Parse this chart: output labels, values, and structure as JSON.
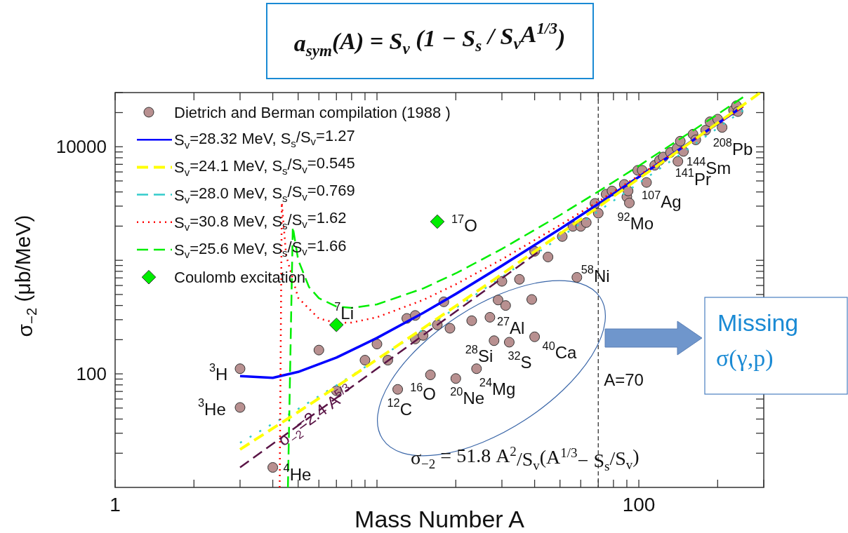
{
  "chart_data": {
    "type": "scatter",
    "title": "a$_{sym}$(A) = S$_{v}$ (1 − S$_{s}$ / S$_{v}$A$^{1/3}$)",
    "xlabel": "Mass Number A",
    "ylabel": "σ$_{−2}$ (μb/MeV)",
    "log": "xy",
    "grid": false,
    "legend": "top left",
    "xlim": [
      1,
      300
    ],
    "ylim": [
      10,
      30000
    ],
    "xticks": [
      1,
      {
        "value": 2,
        "label": null
      },
      {
        "value": 3,
        "label": null
      },
      {
        "value": 4,
        "label": null
      },
      {
        "value": 5,
        "label": null
      },
      {
        "value": 6,
        "label": null
      },
      {
        "value": 7,
        "label": null
      },
      {
        "value": 8,
        "label": null
      },
      {
        "value": 9,
        "label": null
      },
      {
        "value": 10,
        "label": null
      },
      {
        "value": 20,
        "label": null
      },
      {
        "value": 30,
        "label": null
      },
      {
        "value": 40,
        "label": null
      },
      {
        "value": 50,
        "label": null
      },
      {
        "value": 60,
        "label": null
      },
      {
        "value": 70,
        "label": null
      },
      {
        "value": 80,
        "label": null
      },
      {
        "value": 90,
        "label": null
      },
      100,
      {
        "value": 200,
        "label": null
      },
      {
        "value": 300,
        "label": null
      }
    ],
    "yticks": [
      {
        "value": 20,
        "label": null
      },
      {
        "value": 30,
        "label": null
      },
      {
        "value": 40,
        "label": null
      },
      {
        "value": 50,
        "label": null
      },
      {
        "value": 60,
        "label": null
      },
      {
        "value": 70,
        "label": null
      },
      {
        "value": 80,
        "label": null
      },
      {
        "value": 90,
        "label": null
      },
      100,
      {
        "value": 200,
        "label": null
      },
      {
        "value": 300,
        "label": null
      },
      {
        "value": 400,
        "label": null
      },
      {
        "value": 500,
        "label": null
      },
      {
        "value": 600,
        "label": null
      },
      {
        "value": 700,
        "label": null
      },
      {
        "value": 800,
        "label": null
      },
      {
        "value": 900,
        "label": null
      },
      {
        "value": 1000,
        "label": null
      },
      {
        "value": 2000,
        "label": null
      },
      {
        "value": 3000,
        "label": null
      },
      {
        "value": 4000,
        "label": null
      },
      {
        "value": 5000,
        "label": null
      },
      {
        "value": 6000,
        "label": null
      },
      {
        "value": 7000,
        "label": null
      },
      {
        "value": 8000,
        "label": null
      },
      {
        "value": 9000,
        "label": null
      },
      10000,
      {
        "value": 20000,
        "label": null
      },
      {
        "value": 30000,
        "label": null
      }
    ],
    "series": [
      {
        "name": "Dietrich and Berman compilation (1988 )",
        "marker": "circle",
        "color": "#b89090",
        "x": [
          3,
          3,
          4,
          6,
          7,
          9,
          10,
          11,
          12,
          13,
          14,
          14,
          15,
          16,
          17,
          18,
          19,
          20,
          23,
          24,
          27,
          28,
          29,
          30,
          31,
          32,
          35,
          39,
          40,
          40,
          45,
          51,
          56,
          58,
          60,
          63,
          68,
          70,
          75,
          79,
          88,
          90,
          91,
          92,
          99,
          103,
          107,
          115,
          120,
          124,
          132,
          141,
          140,
          144,
          148,
          161,
          165,
          180,
          187,
          200,
          208,
          230,
          236,
          239
        ],
        "values": [
          111,
          50.6,
          15,
          162,
          71,
          132,
          183,
          132,
          73,
          308,
          327,
          203,
          218,
          98,
          270,
          431,
          252,
          91,
          294,
          111,
          315,
          196,
          447,
          653,
          400,
          190,
          680,
          452,
          212,
          1200,
          1070,
          1620,
          1990,
          708,
          1990,
          2150,
          3170,
          2600,
          3820,
          4080,
          4660,
          3620,
          4080,
          3200,
          6200,
          6200,
          4850,
          6870,
          7600,
          8120,
          8900,
          7440,
          9700,
          11200,
          9100,
          12900,
          11500,
          14000,
          16600,
          17500,
          14800,
          21000,
          23000,
          20400
        ]
      },
      {
        "name": "S$_{v}$=28.32 MeV, S$_{s}$/S$_{v}$=1.27",
        "type": "line",
        "line_style": "solid",
        "color": "#0000ff",
        "x": [
          3,
          4,
          5,
          7,
          10,
          15,
          20,
          30,
          50,
          70,
          100,
          150,
          200,
          250
        ],
        "values": [
          95.6,
          92.2,
          104,
          139,
          207,
          344,
          506,
          896,
          1890,
          3140,
          5430,
          10200,
          16000,
          22700
        ]
      },
      {
        "name": "S$_{v}$=24.1 MeV, S$_{s}$/S$_{v}$=0.545",
        "type": "line",
        "line_style": "dashed",
        "color": "#ffff00",
        "x": [
          3,
          5,
          7,
          10,
          15,
          20,
          30,
          50,
          70,
          100,
          150,
          200,
          250,
          290
        ],
        "values": [
          21.6,
          46.1,
          77,
          134,
          252,
          396,
          755,
          1710,
          2950,
          5250,
          10100,
          16200,
          23300,
          29800
        ]
      },
      {
        "name": "S$_{v}$=28.0 MeV, S$_{s}$/S$_{v}$=0.769",
        "type": "line",
        "line_style": "dashed",
        "color": "#33cccc",
        "x": [
          3,
          5,
          7,
          10,
          15,
          20,
          30,
          50,
          70,
          100,
          150,
          200,
          250
        ],
        "values": [
          24.7,
          49.1,
          79.2,
          134,
          245,
          380,
          712,
          1590,
          2700,
          4780,
          9160,
          14600,
          20900
        ]
      },
      {
        "name": "S$_{v}$=30.8 MeV, S$_{s}$/S$_{v}$=1.62",
        "type": "line",
        "line_style": "dotted",
        "color": "#ff0000",
        "x": [
          4.25,
          4.33,
          4.5,
          5,
          6,
          7,
          8,
          10,
          15,
          20,
          30,
          50,
          70,
          100,
          150,
          200,
          250
        ],
        "values": [
          10,
          3220,
          1100,
          467,
          307,
          281,
          283,
          315,
          447,
          615,
          1020,
          2040,
          3300,
          5570,
          10200,
          15900,
          22500
        ]
      },
      {
        "name": "S$_{v}$=25.6 MeV, S$_{s}$/S$_{v}$=1.66",
        "type": "line",
        "line_style": "dashed",
        "color": "#00ee00",
        "x": [
          4.57,
          4.77,
          5,
          5.5,
          6,
          7,
          8,
          10,
          15,
          20,
          30,
          50,
          70,
          100,
          150,
          200,
          250
        ],
        "values": [
          10,
          1970,
          1010,
          582,
          464,
          392,
          381,
          409,
          565,
          768,
          1260,
          2500,
          4030,
          6790,
          12500,
          19300,
          27300
        ]
      },
      {
        "name": "Coulomb excitation",
        "type": "scatter",
        "marker": "diamond",
        "color": "#00ee00",
        "x": [
          7,
          17
        ],
        "values": [
          270,
          2190
        ]
      },
      {
        "name": "σ$_{−2}$=2.4 A$^{5/3}$",
        "type": "line",
        "line_style": "dashed",
        "color": "#5a1446",
        "x": [
          3,
          5,
          10,
          20,
          41
        ],
        "values": [
          15,
          35.1,
          111,
          354,
          1170
        ]
      }
    ],
    "ref_lines": [
      {
        "axis": "x",
        "value": 70,
        "label": "A=70",
        "color": "#333333",
        "line_style": "dashed"
      }
    ],
    "annotations": [
      {
        "text": "$^{3}$H",
        "x": 3,
        "y": 111
      },
      {
        "text": "$^{3}$He",
        "x": 3,
        "y": 50.6
      },
      {
        "text": "$^{4}$He",
        "x": 4,
        "y": 15
      },
      {
        "text": "$^{7}$Li",
        "x": 7,
        "y": 270
      },
      {
        "text": "$^{17}$O",
        "x": 17,
        "y": 2190
      },
      {
        "text": "$^{12}$C",
        "x": 12,
        "y": 73
      },
      {
        "text": "$^{16}$O",
        "x": 16,
        "y": 98
      },
      {
        "text": "$^{20}$Ne",
        "x": 20,
        "y": 91
      },
      {
        "text": "$^{24}$Mg",
        "x": 24,
        "y": 111
      },
      {
        "text": "$^{28}$Si",
        "x": 28,
        "y": 196
      },
      {
        "text": "$^{32}$S",
        "x": 32,
        "y": 190
      },
      {
        "text": "$^{40}$Ca",
        "x": 40,
        "y": 212
      },
      {
        "text": "$^{27}$Al",
        "x": 27,
        "y": 315
      },
      {
        "text": "$^{58}$Ni",
        "x": 58,
        "y": 708
      },
      {
        "text": "$^{92}$Mo",
        "x": 92,
        "y": 3200
      },
      {
        "text": "$^{107}$Ag",
        "x": 107,
        "y": 4850
      },
      {
        "text": "$^{141}$Pr",
        "x": 141,
        "y": 7440
      },
      {
        "text": "$^{144}$Sm",
        "x": 144,
        "y": 11200
      },
      {
        "text": "$^{208}$Pb",
        "x": 208,
        "y": 14800
      },
      "σ$_{−2}$ = 51.8 A$^{2}$/S$_{v}$(A$^{1/3}$− S$_{s}$/S$_{v}$)",
      "Missing σ(γ,p)"
    ]
  }
}
